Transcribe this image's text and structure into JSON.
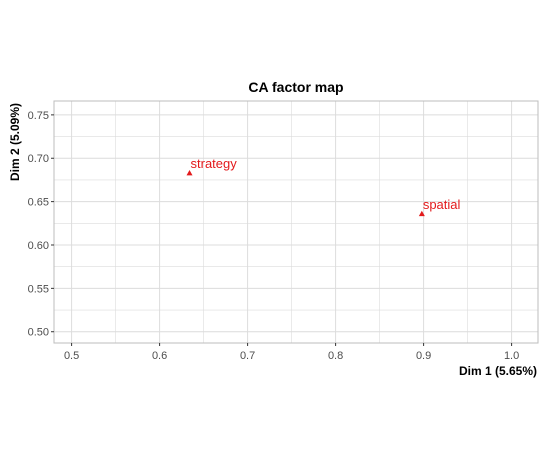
{
  "chart_data": {
    "type": "scatter",
    "title": "CA factor map",
    "xlabel": "Dim 1 (5.65%)",
    "ylabel": "Dim 2 (5.09%)",
    "xlim": [
      0.48,
      1.03
    ],
    "ylim": [
      0.487,
      0.766
    ],
    "x_ticks": [
      0.5,
      0.6,
      0.7,
      0.8,
      0.9,
      1.0
    ],
    "x_tick_labels": [
      "0.5",
      "0.6",
      "0.7",
      "0.8",
      "0.9",
      "1.0"
    ],
    "y_ticks": [
      0.5,
      0.55,
      0.6,
      0.65,
      0.7,
      0.75
    ],
    "y_tick_labels": [
      "0.50",
      "0.55",
      "0.60",
      "0.65",
      "0.70",
      "0.75"
    ],
    "grid": true,
    "point_color": "#e31a1c",
    "grid_color": "#dcdcdc",
    "border_color": "#bdbdbd",
    "points": [
      {
        "label": "strategy",
        "x": 0.634,
        "y": 0.683
      },
      {
        "label": "spatial",
        "x": 0.898,
        "y": 0.636
      }
    ]
  }
}
